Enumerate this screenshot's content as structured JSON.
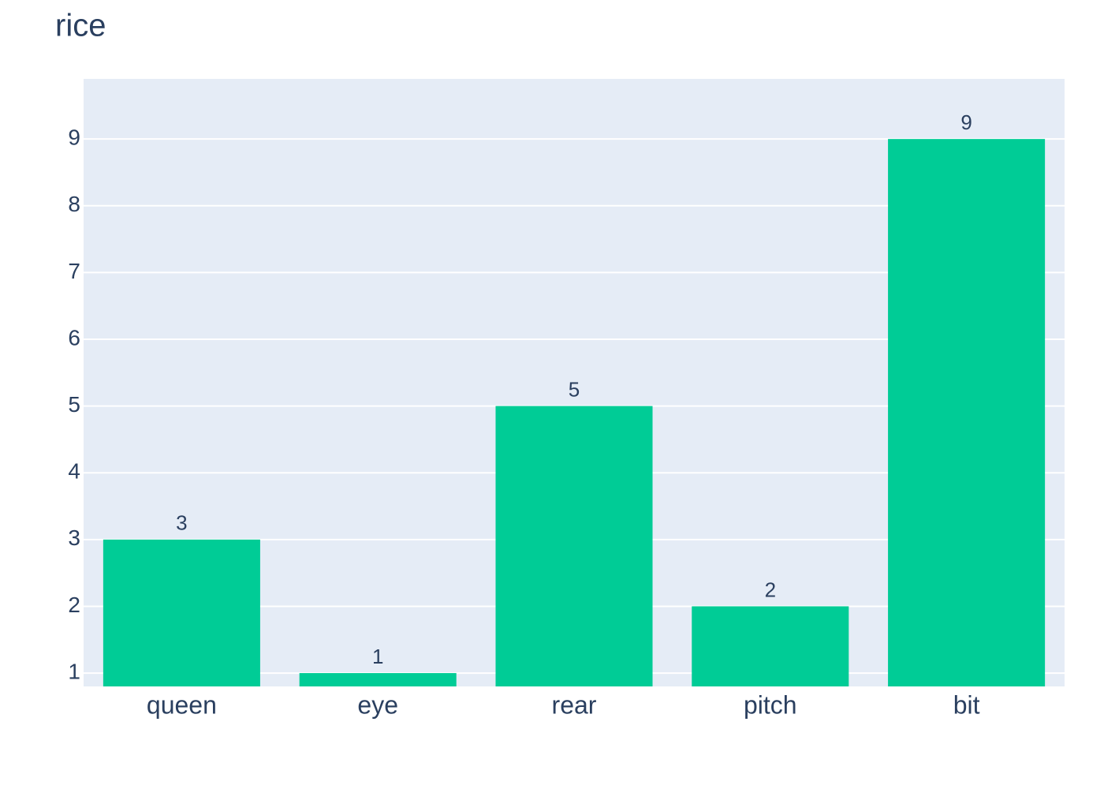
{
  "chart_data": {
    "type": "bar",
    "title": "rice",
    "categories": [
      "queen",
      "eye",
      "rear",
      "pitch",
      "bit"
    ],
    "values": [
      3,
      1,
      5,
      2,
      9
    ],
    "color": "#00cc96",
    "ylim": [
      0.8,
      9.9
    ],
    "yticks": [
      1,
      2,
      3,
      4,
      5,
      6,
      7,
      8,
      9
    ],
    "grid": true
  }
}
